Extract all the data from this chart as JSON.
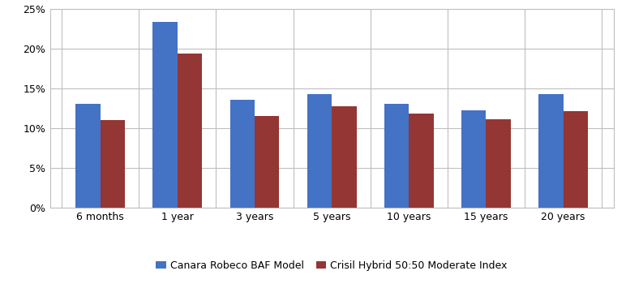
{
  "categories": [
    "6 months",
    "1 year",
    "3 years",
    "5 years",
    "10 years",
    "15 years",
    "20 years"
  ],
  "series": [
    {
      "name": "Canara Robeco BAF Model",
      "values": [
        0.13,
        0.233,
        0.135,
        0.142,
        0.13,
        0.122,
        0.142
      ],
      "color": "#4472C4"
    },
    {
      "name": "Crisil Hybrid 50:50 Moderate Index",
      "values": [
        0.11,
        0.194,
        0.115,
        0.127,
        0.118,
        0.111,
        0.121
      ],
      "color": "#943634"
    }
  ],
  "ylim": [
    0,
    0.25
  ],
  "yticks": [
    0.0,
    0.05,
    0.1,
    0.15,
    0.2,
    0.25
  ],
  "ytick_labels": [
    "0%",
    "5%",
    "10%",
    "15%",
    "20%",
    "25%"
  ],
  "background_color": "#ffffff",
  "grid_color": "#bfbfbf",
  "bar_width": 0.32,
  "figsize": [
    7.72,
    3.55
  ],
  "dpi": 100,
  "tick_fontsize": 9,
  "legend_fontsize": 9
}
